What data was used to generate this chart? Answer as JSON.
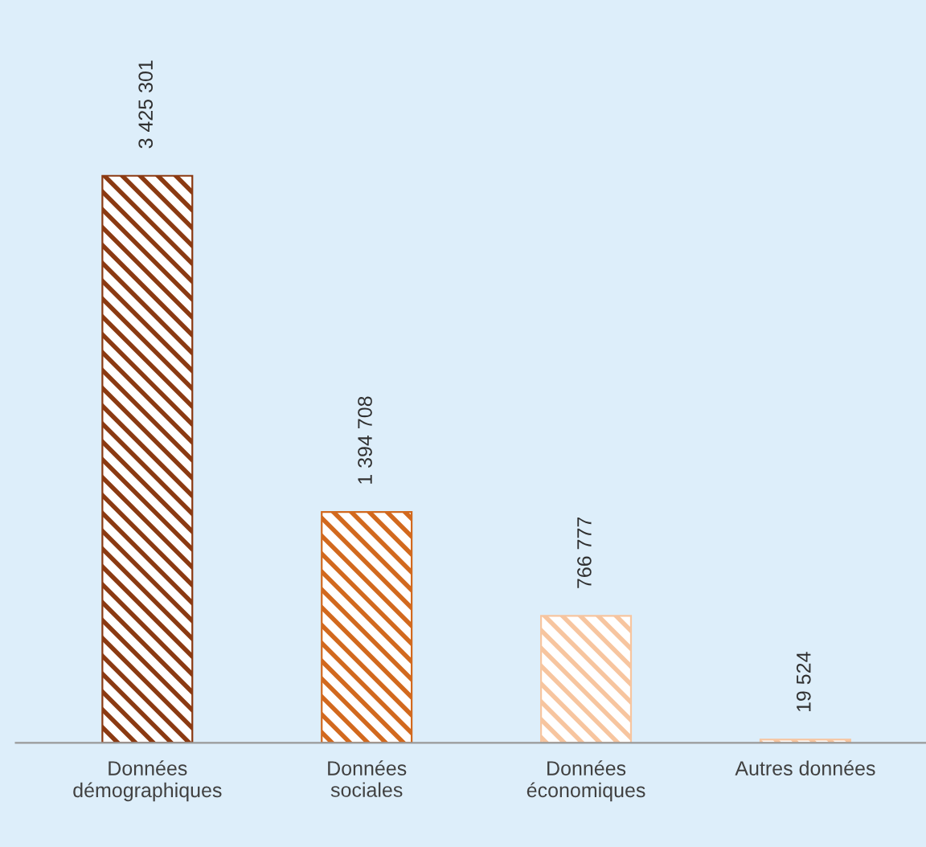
{
  "chart_data": {
    "type": "bar",
    "categories": [
      "Données\ndémographiques",
      "Données\nsociales",
      "Données\néconomiques",
      "Autres données"
    ],
    "values": [
      3425301,
      1394708,
      766777,
      19524
    ],
    "colors": [
      "#8b3a12",
      "#d2691e",
      "#f7c59f",
      "#f7c59f"
    ],
    "value_labels": [
      "3 425 301",
      "1 394 708",
      "766 777",
      "19 524"
    ],
    "legend": false,
    "grid": false
  }
}
